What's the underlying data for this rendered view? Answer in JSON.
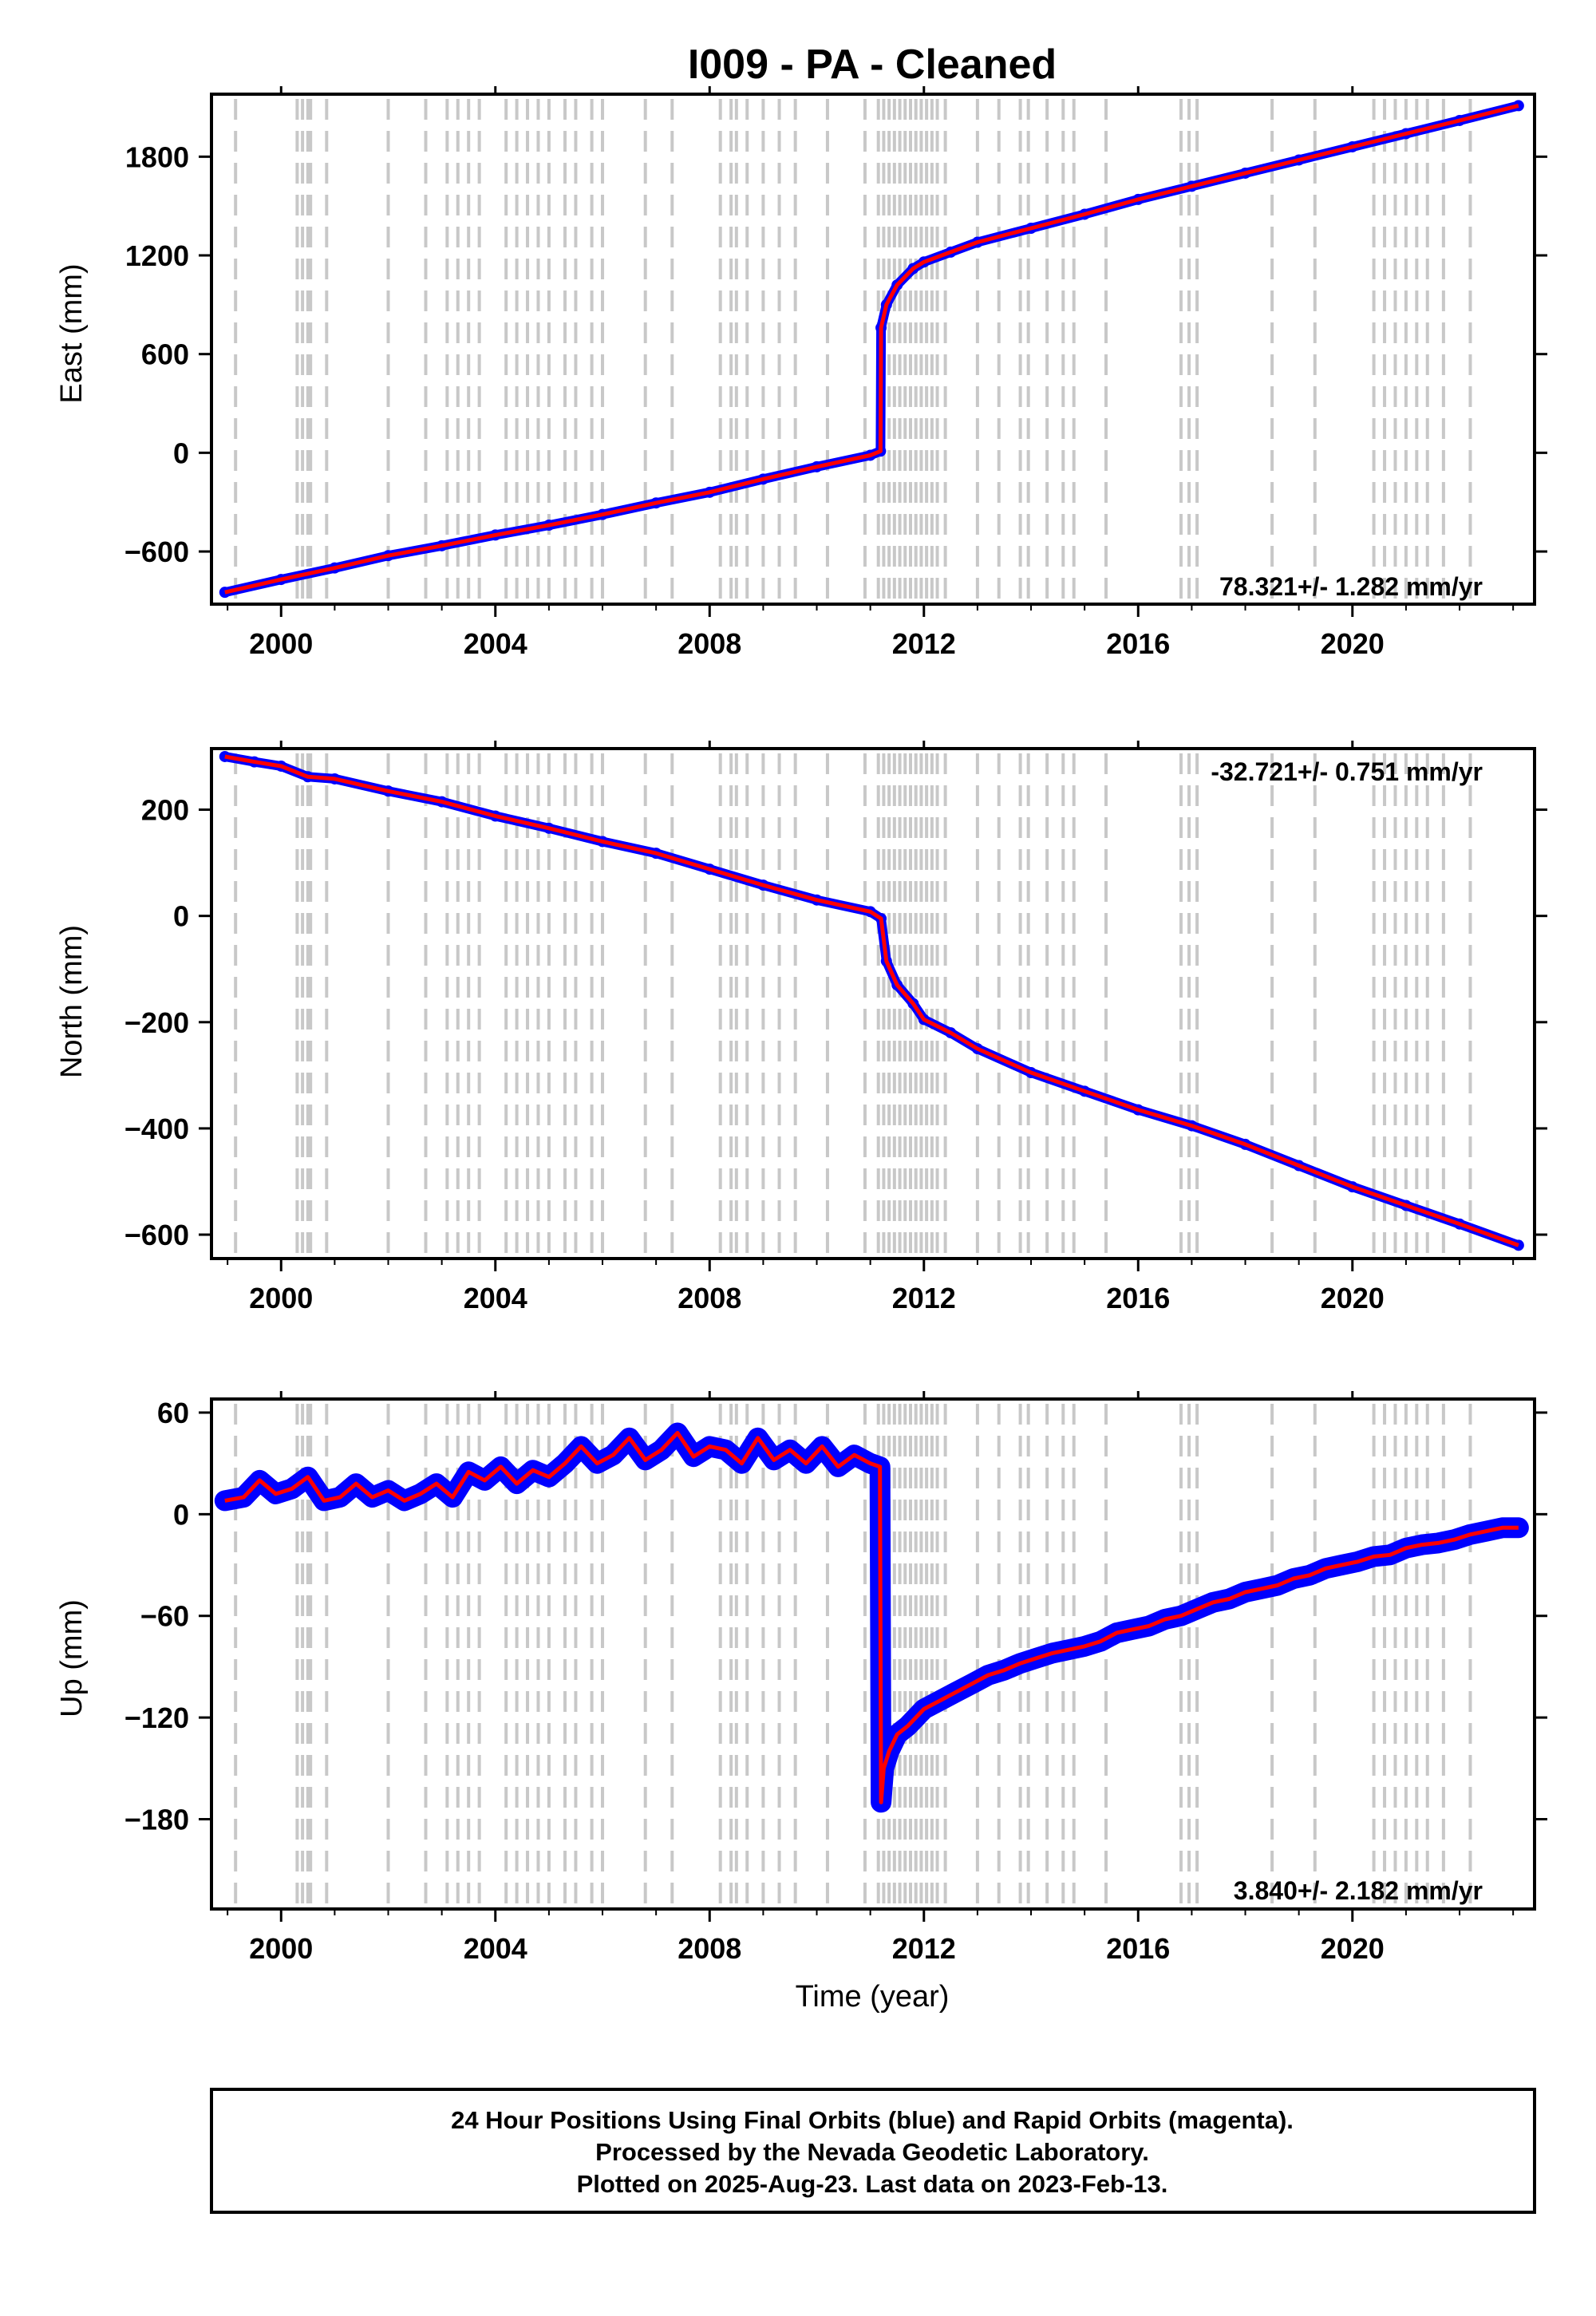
{
  "title": "I009  - PA - Cleaned",
  "footer": {
    "line1": "24 Hour Positions Using Final Orbits (blue) and Rapid Orbits (magenta).",
    "line2": "Processed by the Nevada Geodetic Laboratory.",
    "line3": "Plotted on 2025-Aug-23. Last data on 2023-Feb-13."
  },
  "colors": {
    "data_points": "#0000ff",
    "model_line": "#ff0000",
    "marker_lines": "#c8c8c8",
    "frame": "#000000"
  },
  "chart_data": [
    {
      "type": "scatter",
      "ylabel": "East (mm)",
      "xlabel": "",
      "xlim": [
        1998.7,
        2023.4
      ],
      "ylim": [
        -920,
        2180
      ],
      "xticks": [
        2000,
        2004,
        2008,
        2012,
        2016,
        2020
      ],
      "xtick_labels": [
        "2000",
        "2004",
        "2008",
        "2012",
        "2016",
        "2020"
      ],
      "yticks": [
        -600,
        0,
        600,
        1200,
        1800
      ],
      "ytick_labels": [
        "−600",
        "0",
        "600",
        "1200",
        "1800"
      ],
      "rate_label": "78.321+/- 1.282 mm/yr",
      "rate_position": "bottom-right",
      "grid": false,
      "series": [
        {
          "x": [
            1998.95,
            2000.0,
            2001.0,
            2002.0,
            2003.0,
            2004.0,
            2005.0,
            2006.0,
            2007.0,
            2008.0,
            2009.0,
            2010.0,
            2011.0,
            2011.19,
            2011.2,
            2011.3,
            2011.5,
            2011.8,
            2012.0,
            2012.5,
            2013.0,
            2014.0,
            2015.0,
            2016.0,
            2017.0,
            2018.0,
            2019.0,
            2020.0,
            2021.0,
            2022.0,
            2023.1
          ],
          "y": [
            -848,
            -770,
            -700,
            -625,
            -565,
            -500,
            -440,
            -375,
            -305,
            -240,
            -160,
            -85,
            -15,
            10,
            760,
            900,
            1020,
            1120,
            1160,
            1220,
            1280,
            1365,
            1450,
            1540,
            1620,
            1700,
            1780,
            1860,
            1940,
            2020,
            2110
          ]
        }
      ],
      "reference_lines_x": [
        1999.15,
        2000.3,
        2000.4,
        2000.5,
        2000.55,
        2000.85,
        2002.0,
        2002.7,
        2003.1,
        2003.3,
        2003.5,
        2003.7,
        2004.2,
        2004.4,
        2004.6,
        2004.8,
        2005.0,
        2005.3,
        2005.5,
        2005.8,
        2006.0,
        2006.8,
        2007.3,
        2008.2,
        2008.4,
        2008.5,
        2008.7,
        2009.0,
        2009.3,
        2009.6,
        2010.2,
        2010.9,
        2011.15,
        2011.25,
        2011.35,
        2011.45,
        2011.55,
        2011.65,
        2011.75,
        2011.85,
        2011.95,
        2012.05,
        2012.15,
        2012.25,
        2012.4,
        2013.0,
        2013.4,
        2013.8,
        2013.95,
        2014.3,
        2014.6,
        2014.8,
        2015.4,
        2016.8,
        2016.95,
        2017.1,
        2018.5,
        2019.3,
        2020.4,
        2020.6,
        2020.8,
        2021.0,
        2021.2,
        2021.4,
        2021.7,
        2022.2
      ]
    },
    {
      "type": "scatter",
      "ylabel": "North (mm)",
      "xlabel": "",
      "xlim": [
        1998.7,
        2023.4
      ],
      "ylim": [
        -645,
        315
      ],
      "xticks": [
        2000,
        2004,
        2008,
        2012,
        2016,
        2020
      ],
      "xtick_labels": [
        "2000",
        "2004",
        "2008",
        "2012",
        "2016",
        "2020"
      ],
      "yticks": [
        -600,
        -400,
        -200,
        0,
        200
      ],
      "ytick_labels": [
        "−600",
        "−400",
        "−200",
        "0",
        "200"
      ],
      "rate_label": "-32.721+/- 0.751 mm/yr",
      "rate_position": "top-right",
      "grid": false,
      "series": [
        {
          "x": [
            1998.95,
            1999.5,
            2000.0,
            2000.5,
            2001.0,
            2002.0,
            2003.0,
            2004.0,
            2005.0,
            2006.0,
            2007.0,
            2008.0,
            2009.0,
            2010.0,
            2011.0,
            2011.2,
            2011.3,
            2011.5,
            2011.8,
            2012.0,
            2012.5,
            2013.0,
            2014.0,
            2015.0,
            2016.0,
            2017.0,
            2018.0,
            2019.0,
            2020.0,
            2021.0,
            2022.0,
            2023.1
          ],
          "y": [
            300,
            290,
            282,
            262,
            258,
            235,
            215,
            188,
            165,
            140,
            118,
            88,
            58,
            30,
            8,
            -5,
            -85,
            -130,
            -165,
            -195,
            -220,
            -250,
            -295,
            -330,
            -365,
            -395,
            -430,
            -470,
            -510,
            -545,
            -580,
            -620
          ]
        }
      ],
      "reference_lines_x": [
        1999.15,
        2000.3,
        2000.4,
        2000.5,
        2000.55,
        2000.85,
        2002.0,
        2002.7,
        2003.1,
        2003.3,
        2003.5,
        2003.7,
        2004.2,
        2004.4,
        2004.6,
        2004.8,
        2005.0,
        2005.3,
        2005.5,
        2005.8,
        2006.0,
        2006.8,
        2007.3,
        2008.2,
        2008.4,
        2008.5,
        2008.7,
        2009.0,
        2009.3,
        2009.6,
        2010.2,
        2010.9,
        2011.15,
        2011.25,
        2011.35,
        2011.45,
        2011.55,
        2011.65,
        2011.75,
        2011.85,
        2011.95,
        2012.05,
        2012.15,
        2012.25,
        2012.4,
        2013.0,
        2013.4,
        2013.8,
        2013.95,
        2014.3,
        2014.6,
        2014.8,
        2015.4,
        2016.8,
        2016.95,
        2017.1,
        2018.5,
        2019.3,
        2020.4,
        2020.6,
        2020.8,
        2021.0,
        2021.2,
        2021.4,
        2021.7,
        2022.2
      ]
    },
    {
      "type": "scatter",
      "ylabel": "Up (mm)",
      "xlabel": "Time (year)",
      "xlim": [
        1998.7,
        2023.4
      ],
      "ylim": [
        -233,
        68
      ],
      "xticks": [
        2000,
        2004,
        2008,
        2012,
        2016,
        2020
      ],
      "xtick_labels": [
        "2000",
        "2004",
        "2008",
        "2012",
        "2016",
        "2020"
      ],
      "yticks": [
        -180,
        -120,
        -60,
        0,
        60
      ],
      "ytick_labels": [
        "−180",
        "−120",
        "−60",
        "0",
        "60"
      ],
      "rate_label": "3.840+/- 2.182 mm/yr",
      "rate_position": "bottom-right",
      "grid": false,
      "series": [
        {
          "x": [
            1998.95,
            1999.3,
            1999.6,
            1999.9,
            2000.2,
            2000.5,
            2000.8,
            2001.1,
            2001.4,
            2001.7,
            2002.0,
            2002.3,
            2002.6,
            2002.9,
            2003.2,
            2003.5,
            2003.8,
            2004.1,
            2004.4,
            2004.7,
            2005.0,
            2005.3,
            2005.6,
            2005.9,
            2006.2,
            2006.5,
            2006.8,
            2007.1,
            2007.4,
            2007.7,
            2008.0,
            2008.3,
            2008.6,
            2008.9,
            2009.2,
            2009.5,
            2009.8,
            2010.1,
            2010.4,
            2010.7,
            2011.0,
            2011.18,
            2011.2,
            2011.25,
            2011.35,
            2011.5,
            2011.7,
            2012.0,
            2012.3,
            2012.6,
            2012.9,
            2013.2,
            2013.5,
            2013.8,
            2014.1,
            2014.4,
            2014.7,
            2015.0,
            2015.3,
            2015.6,
            2015.9,
            2016.2,
            2016.5,
            2016.8,
            2017.1,
            2017.4,
            2017.7,
            2018.0,
            2018.3,
            2018.6,
            2018.9,
            2019.2,
            2019.5,
            2019.8,
            2020.1,
            2020.4,
            2020.7,
            2021.0,
            2021.3,
            2021.6,
            2021.9,
            2022.2,
            2022.5,
            2022.8,
            2023.1
          ],
          "y": [
            8,
            10,
            20,
            12,
            15,
            22,
            8,
            10,
            18,
            10,
            14,
            8,
            12,
            18,
            10,
            25,
            20,
            28,
            18,
            26,
            22,
            30,
            40,
            30,
            35,
            45,
            32,
            38,
            48,
            34,
            40,
            38,
            30,
            45,
            32,
            38,
            30,
            40,
            28,
            35,
            30,
            28,
            -170,
            -150,
            -140,
            -130,
            -125,
            -115,
            -110,
            -105,
            -100,
            -95,
            -92,
            -88,
            -85,
            -82,
            -80,
            -78,
            -75,
            -70,
            -68,
            -66,
            -62,
            -60,
            -56,
            -52,
            -50,
            -46,
            -44,
            -42,
            -38,
            -36,
            -32,
            -30,
            -28,
            -25,
            -24,
            -20,
            -18,
            -17,
            -15,
            -12,
            -10,
            -8,
            -8
          ]
        }
      ],
      "reference_lines_x": [
        1999.15,
        2000.3,
        2000.4,
        2000.5,
        2000.55,
        2000.85,
        2002.0,
        2002.7,
        2003.1,
        2003.3,
        2003.5,
        2003.7,
        2004.2,
        2004.4,
        2004.6,
        2004.8,
        2005.0,
        2005.3,
        2005.5,
        2005.8,
        2006.0,
        2006.8,
        2007.3,
        2008.2,
        2008.4,
        2008.5,
        2008.7,
        2009.0,
        2009.3,
        2009.6,
        2010.2,
        2010.9,
        2011.15,
        2011.25,
        2011.35,
        2011.45,
        2011.55,
        2011.65,
        2011.75,
        2011.85,
        2011.95,
        2012.05,
        2012.15,
        2012.25,
        2012.4,
        2013.0,
        2013.4,
        2013.8,
        2013.95,
        2014.3,
        2014.6,
        2014.8,
        2015.4,
        2016.8,
        2016.95,
        2017.1,
        2018.5,
        2019.3,
        2020.4,
        2020.6,
        2020.8,
        2021.0,
        2021.2,
        2021.4,
        2021.7,
        2022.2
      ]
    }
  ]
}
